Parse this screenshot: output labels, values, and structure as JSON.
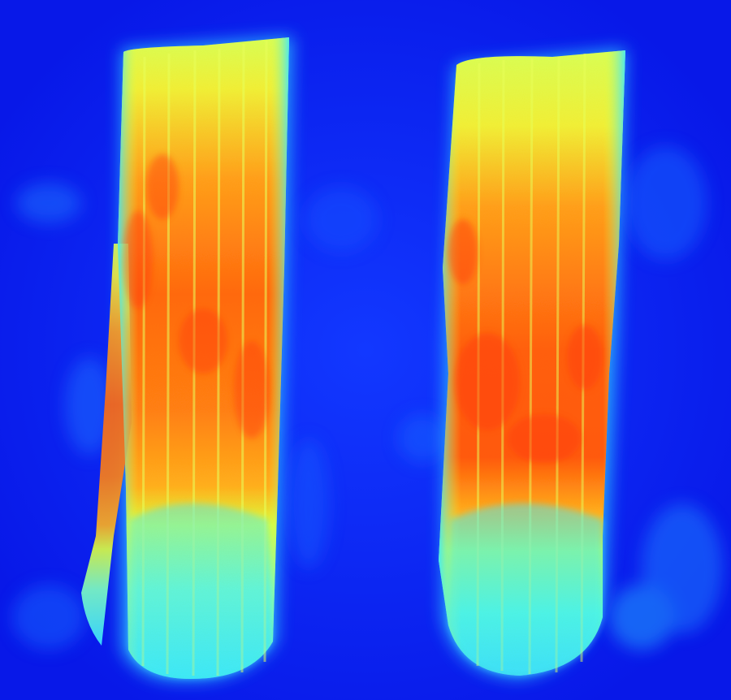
{
  "image": {
    "palette": {
      "background": "#0a1ff0",
      "background_light": "#1660ff",
      "cold": "#19b6ff",
      "cool": "#3ff0e8",
      "warm": "#e8ff3a",
      "hot": "#ff9a1a",
      "hottest": "#ff4a0a"
    },
    "objects": [
      {
        "name": "left-thermal-column"
      },
      {
        "name": "right-thermal-column"
      }
    ]
  }
}
